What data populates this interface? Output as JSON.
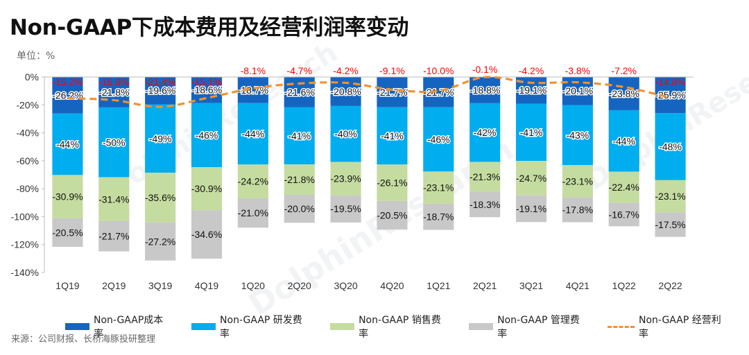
{
  "title": "Non-GAAP下成本费用及经营利润率变动",
  "unit_label": "单位：%",
  "source": "来源：公司财报、长桥海豚投研整理",
  "watermark": "DolphinResearch",
  "colors": {
    "cost": "#1565c0",
    "rd": "#00adef",
    "sales": "#c5dca0",
    "admin": "#c8c8c8",
    "margin": "#f0922e",
    "margin_label": "#ff0000"
  },
  "legend": [
    {
      "key": "cost",
      "label": "Non-GAAP成本率"
    },
    {
      "key": "rd",
      "label": "Non-GAAP 研发费率"
    },
    {
      "key": "sales",
      "label": "Non-GAAP 销售费率"
    },
    {
      "key": "admin",
      "label": "Non-GAAP 管理费率"
    },
    {
      "key": "margin",
      "label": "Non-GAAP 经营利率"
    }
  ],
  "chart_data": {
    "type": "bar",
    "stacked": true,
    "title": "Non-GAAP下成本费用及经营利润率变动",
    "ylabel": "单位：%",
    "ylim": [
      -140,
      0
    ],
    "yticks": [
      0,
      -20,
      -40,
      -60,
      -80,
      -100,
      -120,
      -140
    ],
    "ytick_labels": [
      "0%",
      "-20%",
      "-40%",
      "-60%",
      "-80%",
      "-100%",
      "-120%",
      "-140%"
    ],
    "categories": [
      "1Q19",
      "2Q19",
      "3Q19",
      "4Q19",
      "1Q20",
      "2Q20",
      "3Q20",
      "4Q20",
      "1Q21",
      "2Q21",
      "3Q21",
      "4Q21",
      "1Q22",
      "2Q22"
    ],
    "series": [
      {
        "key": "cost",
        "name": "Non-GAAP成本率",
        "values": [
          -26.2,
          -21.8,
          -19.6,
          -18.6,
          -18.7,
          -21.6,
          -20.8,
          -21.7,
          -21.7,
          -18.8,
          -19.1,
          -20.1,
          -23.8,
          -25.9
        ],
        "labels": [
          "-26.2%",
          "-21.8%",
          "-19.6%",
          "-18.6%",
          "-18.7%",
          "-21.6%",
          "-20.8%",
          "-21.7%",
          "-21.7%",
          "-18.8%",
          "-19.1%",
          "-20.1%",
          "-23.8%",
          "-25.9%"
        ]
      },
      {
        "key": "rd",
        "name": "Non-GAAP 研发费率",
        "values": [
          -44,
          -50,
          -49,
          -46,
          -44,
          -41,
          -40,
          -41,
          -46,
          -42,
          -41,
          -43,
          -44,
          -48
        ],
        "labels": [
          "-44%",
          "-50%",
          "-49%",
          "-46%",
          "-44%",
          "-41%",
          "-40%",
          "-41%",
          "-46%",
          "-42%",
          "-41%",
          "-43%",
          "-44%",
          "-48%"
        ]
      },
      {
        "key": "sales",
        "name": "Non-GAAP 销售费率",
        "values": [
          -30.9,
          -31.4,
          -35.6,
          -30.9,
          -24.2,
          -21.8,
          -23.9,
          -26.1,
          -23.1,
          -21.3,
          -24.7,
          -23.1,
          -22.4,
          -23.1
        ],
        "labels": [
          "-30.9%",
          "-31.4%",
          "-35.6%",
          "-30.9%",
          "-24.2%",
          "-21.8%",
          "-23.9%",
          "-26.1%",
          "-23.1%",
          "-21.3%",
          "-24.7%",
          "-23.1%",
          "-22.4%",
          "-23.1%"
        ]
      },
      {
        "key": "admin",
        "name": "Non-GAAP 管理费率",
        "values": [
          -20.5,
          -21.7,
          -27.2,
          -34.6,
          -21.0,
          -20.0,
          -19.5,
          -20.5,
          -18.7,
          -18.3,
          -19.1,
          -17.8,
          -16.7,
          -17.5
        ],
        "labels": [
          "-20.5%",
          "-21.7%",
          "-27.2%",
          "-34.6%",
          "-21.0%",
          "-20.0%",
          "-19.5%",
          "-20.5%",
          "-18.7%",
          "-18.3%",
          "-19.1%",
          "-17.8%",
          "-16.7%",
          "-17.5%"
        ]
      }
    ],
    "line": {
      "key": "margin",
      "name": "Non-GAAP 经营利率",
      "style": "dashed",
      "values": [
        -15.2,
        -16.6,
        -21.4,
        -15.1,
        -8.1,
        -4.7,
        -4.2,
        -9.1,
        -10.0,
        -0.1,
        -4.2,
        -3.8,
        -7.2,
        -14.8
      ],
      "labels": [
        "-15.2%",
        "-16.6%",
        "-21.4%",
        "-15.1%",
        "-8.1%",
        "-4.7%",
        "-4.2%",
        "-9.1%",
        "-10.0%",
        "-0.1%",
        "-4.2%",
        "-3.8%",
        "-7.2%",
        "-14.8%"
      ]
    }
  }
}
